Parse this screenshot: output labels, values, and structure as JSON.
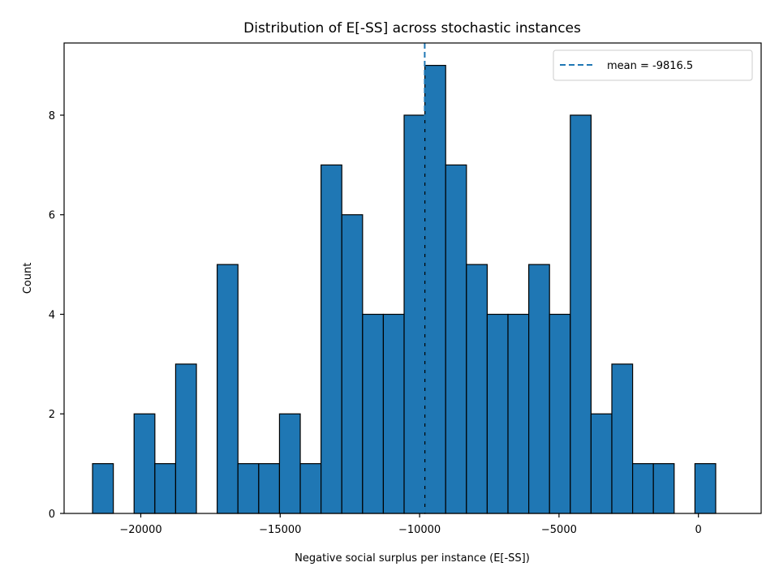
{
  "chart_data": {
    "type": "bar",
    "subtype": "histogram",
    "title": "Distribution of E[-SS] across stochastic instances",
    "xlabel": "Negative social surplus per instance (E[-SS])",
    "ylabel": "Count",
    "xlim": [
      -22750,
      2250
    ],
    "ylim": [
      0,
      9.45
    ],
    "xticks": [
      -20000,
      -15000,
      -10000,
      -5000,
      0
    ],
    "xtick_labels": [
      "−20000",
      "−15000",
      "−10000",
      "−5000",
      "0"
    ],
    "yticks": [
      0,
      2,
      4,
      6,
      8
    ],
    "ytick_labels": [
      "0",
      "2",
      "4",
      "6",
      "8"
    ],
    "bin_start": -21730,
    "bin_width": 745,
    "bin_counts": [
      1,
      0,
      2,
      1,
      3,
      0,
      5,
      1,
      1,
      2,
      1,
      7,
      6,
      4,
      4,
      8,
      9,
      7,
      5,
      4,
      4,
      5,
      4,
      8,
      2,
      3,
      1,
      1,
      0,
      1
    ],
    "bar_color": "#1f77b4",
    "edge_color": "#000000",
    "mean_line": {
      "x": -9816.5,
      "label": "mean = -9816.5",
      "color": "#1f77b4",
      "style": "dashed"
    },
    "legend_position": "top-right",
    "grid": false
  }
}
